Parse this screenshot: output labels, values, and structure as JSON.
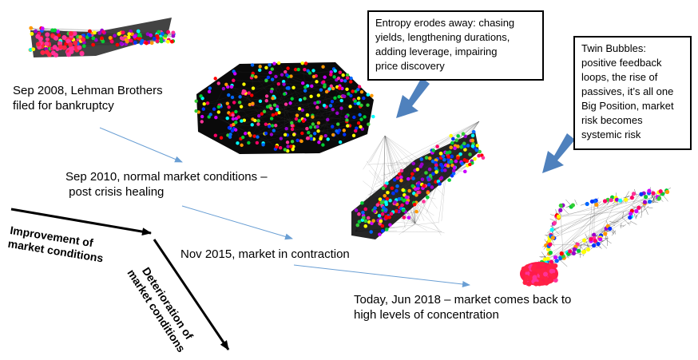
{
  "labels": {
    "lehman": [
      "Sep 2008, Lehman Brothers",
      "filed for bankruptcy"
    ],
    "normal": [
      "Sep 2010, normal market conditions –",
      " post crisis healing"
    ],
    "contraction": [
      "Nov 2015, market in contraction"
    ],
    "today": [
      "Today, Jun 2018 – market comes back to",
      "high levels of concentration"
    ]
  },
  "callouts": {
    "entropy": [
      "Entropy erodes away: chasing",
      "yields, lengthening durations,",
      "adding leverage, impairing",
      "price discovery"
    ],
    "twin": [
      "Twin Bubbles:",
      "positive feedback",
      "loops, the rise of",
      "passives, it’s all one",
      "Big Position, market",
      "risk becomes",
      "systemic risk"
    ]
  },
  "axes": {
    "improvement": [
      "Improvement of",
      "market conditions"
    ],
    "deterioration": [
      "Deterioration of",
      "market conditions"
    ]
  },
  "colors": {
    "node_palette": [
      "#ff0000",
      "#ff3399",
      "#cc00ff",
      "#0033ff",
      "#00cc33",
      "#00ffff",
      "#ffff00",
      "#ff9900",
      "#9900cc",
      "#33cc33",
      "#ff0066",
      "#0066ff"
    ],
    "flow_arrow": "#6a9fd4",
    "callout_arrow": "#4f81bd",
    "edge": "#333333"
  }
}
